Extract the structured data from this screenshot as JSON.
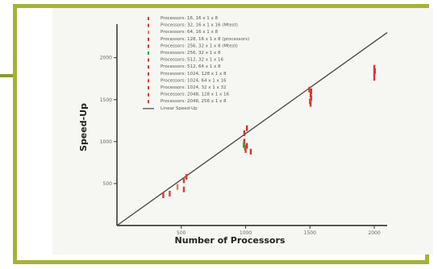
{
  "chart_data": {
    "type": "scatter",
    "title": "",
    "xlabel": "Number of Processors",
    "ylabel": "Speed-Up",
    "xlim": [
      0,
      2100
    ],
    "ylim": [
      0,
      2400
    ],
    "x_ticks": [
      {
        "value": 500,
        "label": "500"
      },
      {
        "value": 1000,
        "label": "1000"
      },
      {
        "value": 1500,
        "label": "1500"
      },
      {
        "value": 2000,
        "label": "2000"
      }
    ],
    "y_ticks": [
      {
        "value": 500,
        "label": "500"
      },
      {
        "value": 1000,
        "label": "1000"
      },
      {
        "value": 1500,
        "label": "1500"
      },
      {
        "value": 2000,
        "label": "2000"
      }
    ],
    "grid": false,
    "legend_position": "top-center",
    "series": [
      {
        "name": "Processors: 16, 16 x 1 x 8",
        "color": "#d04030",
        "points": [
          [
            360,
            360
          ],
          [
            410,
            380
          ]
        ]
      },
      {
        "name": "Processors: 32, 16 x 1 x 16 (Mtest)",
        "color": "#d04030",
        "points": [
          [
            520,
            540
          ],
          [
            540,
            580
          ],
          [
            520,
            430
          ]
        ]
      },
      {
        "name": "Processors: 64, 16 x 1 x 8",
        "color": "#e08060",
        "points": [
          [
            470,
            460
          ]
        ]
      },
      {
        "name": "Processors: 128, 16 x 1 x 8 (processors)",
        "color": "#d03030",
        "points": [
          [
            990,
            1100
          ],
          [
            990,
            1000
          ],
          [
            1010,
            1160
          ]
        ]
      },
      {
        "name": "Processors: 256, 32 x 1 x 8 (Mtest)",
        "color": "#d03030",
        "points": [
          [
            1010,
            950
          ],
          [
            1040,
            880
          ]
        ]
      },
      {
        "name": "Processors: 256, 32 x 1 x 8",
        "color": "#40a040",
        "points": [
          [
            985,
            960
          ],
          [
            995,
            930
          ]
        ]
      },
      {
        "name": "Processors: 512, 32 x 1 x 16",
        "color": "#d04030",
        "points": [
          [
            1000,
            900
          ]
        ]
      },
      {
        "name": "Processors: 512, 64 x 1 x 8",
        "color": "#d04030",
        "points": [
          [
            1510,
            1520
          ]
        ]
      },
      {
        "name": "Processors: 1024, 128 x 1 x 8",
        "color": "#e03030",
        "points": [
          [
            1505,
            1560
          ],
          [
            1505,
            1450
          ],
          [
            1510,
            1600
          ]
        ]
      },
      {
        "name": "Processors: 1024, 64 x 1 x 16",
        "color": "#d04030",
        "points": [
          [
            1500,
            1480
          ]
        ]
      },
      {
        "name": "Processors: 1024, 32 x 1 x 32",
        "color": "#d04030",
        "points": [
          [
            1495,
            1620
          ]
        ]
      },
      {
        "name": "Processors: 2048, 128 x 1 x 16",
        "color": "#e03030",
        "points": [
          [
            2000,
            1820
          ],
          [
            2000,
            1760
          ],
          [
            2000,
            1880
          ]
        ]
      },
      {
        "name": "Processors: 2048, 256 x 1 x 8",
        "color": "#d04030",
        "points": [
          [
            2005,
            1840
          ]
        ]
      }
    ],
    "reference_line": {
      "name": "Linear Speed-Up",
      "color": "#444444",
      "points": [
        [
          0,
          0
        ],
        [
          2100,
          2300
        ]
      ]
    }
  }
}
